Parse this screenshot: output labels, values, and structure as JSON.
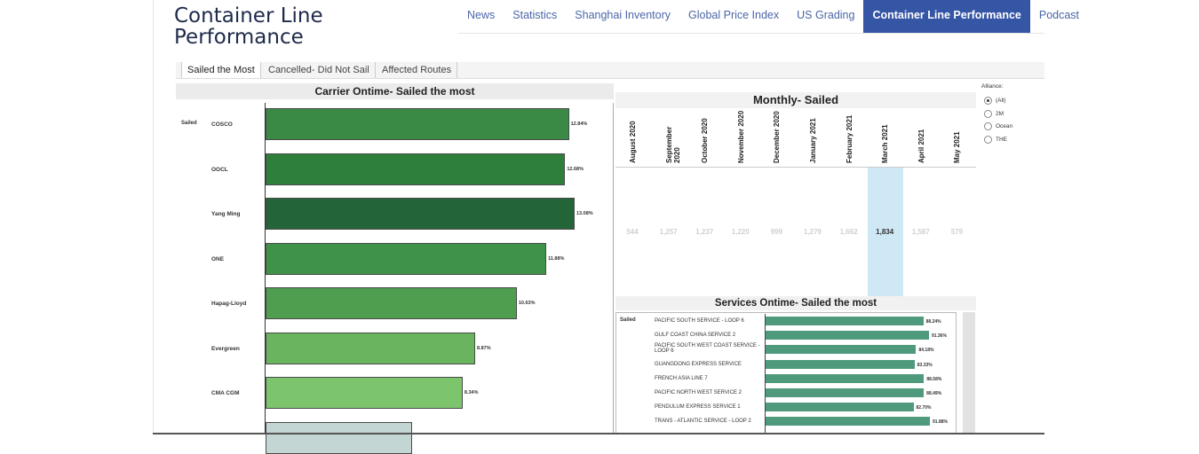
{
  "page": {
    "title_line1": "Container Line",
    "title_line2": "Performance"
  },
  "nav": {
    "items": [
      "News",
      "Statistics",
      "Shanghai Inventory",
      "Global Price Index",
      "US Grading",
      "Container Line Performance",
      "Podcast"
    ],
    "active_index": 5
  },
  "tabs": [
    "Sailed the Most",
    "Cancelled- Did Not Sail",
    "Affected Routes"
  ],
  "carrier_chart": {
    "title": "Carrier Ontime- Sailed the most",
    "row_header": "Sailed",
    "carriers": [
      {
        "name": "COSCO",
        "value_label": "12.84%",
        "value": 12.84,
        "color": "#3a8a46"
      },
      {
        "name": "OOCL",
        "value_label": "12.68%",
        "value": 12.68,
        "color": "#2f7f3c"
      },
      {
        "name": "Yang Ming",
        "value_label": "13.08%",
        "value": 13.08,
        "color": "#236538"
      },
      {
        "name": "ONE",
        "value_label": "11.88%",
        "value": 11.88,
        "color": "#3f9349"
      },
      {
        "name": "Hapag-Lloyd",
        "value_label": "10.63%",
        "value": 10.63,
        "color": "#4f9d4f"
      },
      {
        "name": "Evergreen",
        "value_label": "8.87%",
        "value": 8.87,
        "color": "#6ab35f"
      },
      {
        "name": "CMA CGM",
        "value_label": "8.34%",
        "value": 8.34,
        "color": "#7cc56d"
      },
      {
        "name": "",
        "value_label": "",
        "value": 6.2,
        "color": "#c3d6d3"
      }
    ],
    "xlim": [
      0,
      15
    ]
  },
  "monthly": {
    "title": "Monthly- Sailed",
    "months": [
      "August 2020",
      "September 2020",
      "October 2020",
      "November 2020",
      "December 2020",
      "January 2021",
      "February 2021",
      "March 2021",
      "April 2021",
      "May 2021"
    ],
    "values": [
      "544",
      "1,257",
      "1,237",
      "1,220",
      "999",
      "1,279",
      "1,662",
      "1,834",
      "1,587",
      "579"
    ],
    "selected_index": 7
  },
  "services_chart": {
    "title": "Services Ontime- Sailed the most",
    "row_header": "Sailed",
    "services": [
      {
        "name": "PACIFIC SOUTH SERVICE - LOOP 6",
        "value_label": "88.24%",
        "value": 88.24
      },
      {
        "name": "GULF COAST CHINA SERVICE 2",
        "value_label": "91.36%",
        "value": 91.36
      },
      {
        "name": "PACIFIC SOUTH WEST COAST SERVICE - LOOP 6",
        "value_label": "84.18%",
        "value": 84.18
      },
      {
        "name": "GUANGDONG EXPRESS SERVICE",
        "value_label": "83.33%",
        "value": 83.33
      },
      {
        "name": "FRENCH ASIA LINE 7",
        "value_label": "88.58%",
        "value": 88.58
      },
      {
        "name": "PACIFIC NORTH WEST SERVICE 2",
        "value_label": "88.49%",
        "value": 88.49
      },
      {
        "name": "PENDULUM EXPRESS SERVICE 1",
        "value_label": "82.70%",
        "value": 82.7
      },
      {
        "name": "TRANS - ATLANTIC SERVICE - LOOP 2",
        "value_label": "91.88%",
        "value": 91.88
      }
    ],
    "xlim": [
      0,
      100
    ]
  },
  "alliance": {
    "label": "Alliance:",
    "options": [
      "(All)",
      "2M",
      "Ocean",
      "THE"
    ],
    "selected_index": 0
  }
}
